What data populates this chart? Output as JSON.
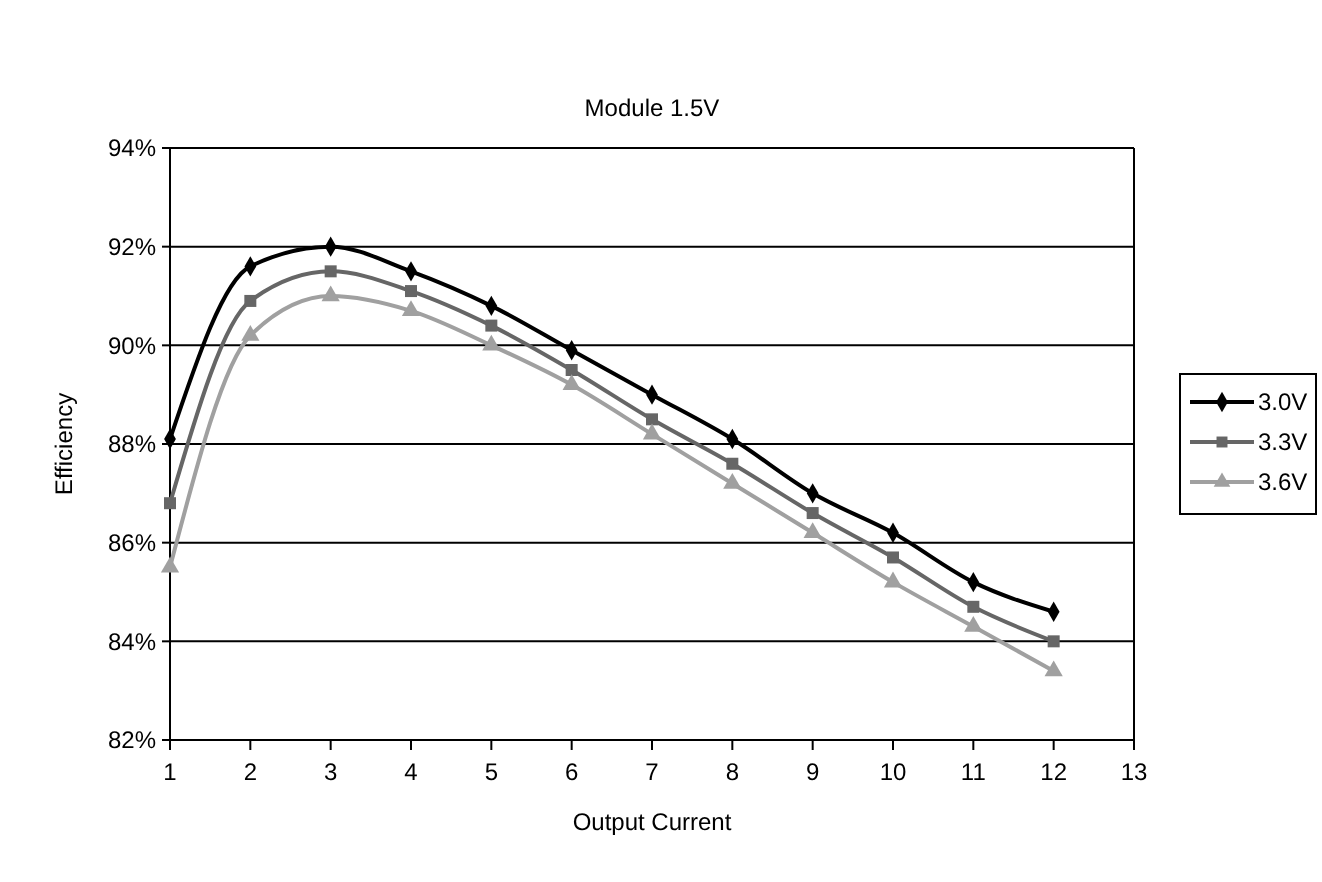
{
  "chart_data": {
    "type": "line",
    "title": "Module 1.5V",
    "xlabel": "Output Current",
    "ylabel": "Efficiency",
    "x": [
      1,
      2,
      3,
      4,
      5,
      6,
      7,
      8,
      9,
      10,
      11,
      12
    ],
    "series": [
      {
        "name": "3.0V",
        "color": "#000000",
        "marker": "diamond",
        "values": [
          88.1,
          91.6,
          92.0,
          91.5,
          90.8,
          89.9,
          89.0,
          88.1,
          87.0,
          86.2,
          85.2,
          84.6
        ]
      },
      {
        "name": "3.3V",
        "color": "#666666",
        "marker": "square",
        "values": [
          86.8,
          90.9,
          91.5,
          91.1,
          90.4,
          89.5,
          88.5,
          87.6,
          86.6,
          85.7,
          84.7,
          84.0
        ]
      },
      {
        "name": "3.6V",
        "color": "#a0a0a0",
        "marker": "triangle",
        "values": [
          85.5,
          90.2,
          91.0,
          90.7,
          90.0,
          89.2,
          88.2,
          87.2,
          86.2,
          85.2,
          84.3,
          83.4
        ]
      }
    ],
    "xlim": [
      1,
      13
    ],
    "xticks": [
      1,
      2,
      3,
      4,
      5,
      6,
      7,
      8,
      9,
      10,
      11,
      12,
      13
    ],
    "ylim": [
      82,
      94
    ],
    "yticks": [
      {
        "value": 82,
        "label": "82%"
      },
      {
        "value": 84,
        "label": "84%"
      },
      {
        "value": 86,
        "label": "86%"
      },
      {
        "value": 88,
        "label": "88%"
      },
      {
        "value": 90,
        "label": "90%"
      },
      {
        "value": 92,
        "label": "92%"
      },
      {
        "value": 94,
        "label": "94%"
      }
    ],
    "grid": "y",
    "legend": "right",
    "line_style": "solid"
  }
}
